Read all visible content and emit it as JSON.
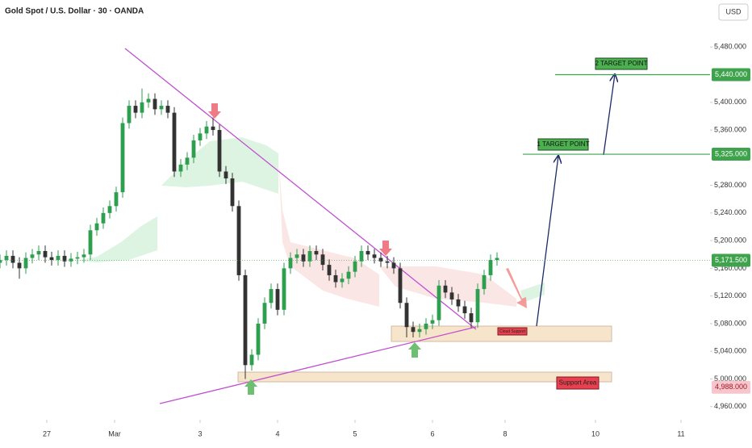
{
  "chart_data": {
    "type": "candlestick",
    "title": "Gold Spot / U.S. Dollar · 30 · OANDA",
    "currency": "USD",
    "x": [
      0,
      4,
      8,
      12,
      16,
      20,
      24,
      28,
      32,
      36,
      40,
      44,
      48,
      52,
      56,
      60,
      64,
      68,
      72,
      76,
      80,
      84,
      88,
      92,
      96,
      100,
      104,
      108,
      112,
      116,
      120,
      124,
      128,
      132,
      136,
      140,
      144,
      148,
      152,
      156,
      160,
      164,
      168,
      172,
      176,
      180,
      184,
      188,
      192,
      196,
      200,
      204,
      208,
      212,
      216,
      220,
      224,
      228,
      232,
      236,
      240,
      244,
      248,
      252,
      256,
      260,
      264,
      268,
      272,
      276,
      280,
      284,
      288,
      292,
      296,
      300,
      304,
      308
    ],
    "open": [
      5168,
      5172,
      5178,
      5168,
      5160,
      5175,
      5180,
      5185,
      5176,
      5172,
      5178,
      5170,
      5174,
      5176,
      5180,
      5215,
      5225,
      5240,
      5250,
      5270,
      5370,
      5395,
      5385,
      5400,
      5405,
      5390,
      5395,
      5385,
      5300,
      5310,
      5320,
      5345,
      5355,
      5365,
      5360,
      5300,
      5290,
      5250,
      5150,
      5020,
      5035,
      5080,
      5110,
      5130,
      5100,
      5160,
      5175,
      5180,
      5170,
      5185,
      5180,
      5165,
      5150,
      5140,
      5145,
      5155,
      5170,
      5185,
      5180,
      5175,
      5170,
      5168,
      5160,
      5110,
      5075,
      5068,
      5072,
      5080,
      5085,
      5135,
      5125,
      5115,
      5105,
      5095,
      5082,
      5130,
      5150,
      5172
    ],
    "high": [
      5180,
      5186,
      5186,
      5176,
      5183,
      5188,
      5193,
      5193,
      5184,
      5186,
      5186,
      5182,
      5184,
      5188,
      5223,
      5233,
      5248,
      5258,
      5278,
      5378,
      5403,
      5403,
      5420,
      5413,
      5413,
      5403,
      5403,
      5393,
      5318,
      5328,
      5353,
      5363,
      5373,
      5378,
      5368,
      5308,
      5298,
      5258,
      5158,
      5043,
      5088,
      5118,
      5138,
      5138,
      5168,
      5183,
      5188,
      5188,
      5193,
      5193,
      5188,
      5173,
      5158,
      5153,
      5163,
      5178,
      5193,
      5193,
      5188,
      5183,
      5178,
      5176,
      5168,
      5118,
      5083,
      5080,
      5088,
      5093,
      5143,
      5143,
      5133,
      5123,
      5113,
      5103,
      5138,
      5158,
      5180,
      5183
    ],
    "low": [
      5160,
      5164,
      5160,
      5145,
      5152,
      5167,
      5172,
      5168,
      5164,
      5164,
      5162,
      5162,
      5166,
      5168,
      5172,
      5207,
      5217,
      5232,
      5242,
      5262,
      5362,
      5377,
      5377,
      5392,
      5382,
      5382,
      5377,
      5292,
      5292,
      5302,
      5312,
      5337,
      5347,
      5352,
      5292,
      5282,
      5242,
      5142,
      5000,
      5012,
      5027,
      5072,
      5102,
      5092,
      5092,
      5152,
      5167,
      5162,
      5162,
      5172,
      5157,
      5142,
      5132,
      5132,
      5137,
      5147,
      5162,
      5172,
      5167,
      5162,
      5160,
      5152,
      5102,
      5060,
      5060,
      5060,
      5064,
      5072,
      5077,
      5117,
      5107,
      5097,
      5087,
      5074,
      5074,
      5122,
      5142,
      5164
    ],
    "close": [
      5172,
      5178,
      5168,
      5160,
      5175,
      5180,
      5185,
      5176,
      5172,
      5178,
      5170,
      5174,
      5176,
      5180,
      5215,
      5225,
      5240,
      5250,
      5270,
      5370,
      5395,
      5385,
      5400,
      5405,
      5390,
      5395,
      5385,
      5300,
      5310,
      5320,
      5345,
      5355,
      5365,
      5360,
      5300,
      5290,
      5250,
      5150,
      5020,
      5035,
      5080,
      5110,
      5130,
      5100,
      5160,
      5175,
      5180,
      5170,
      5185,
      5180,
      5165,
      5150,
      5140,
      5145,
      5155,
      5170,
      5185,
      5180,
      5175,
      5170,
      5168,
      5160,
      5110,
      5075,
      5068,
      5072,
      5080,
      5085,
      5135,
      5125,
      5115,
      5105,
      5095,
      5082,
      5130,
      5150,
      5172,
      5175
    ],
    "up_color": "#2e9e4f",
    "down_color": "#333333",
    "xlim": [
      0,
      440
    ],
    "xticks": [
      {
        "value": 29,
        "label": "27"
      },
      {
        "value": 71,
        "label": "Mar"
      },
      {
        "value": 124,
        "label": "3"
      },
      {
        "value": 172,
        "label": "4"
      },
      {
        "value": 220,
        "label": "5"
      },
      {
        "value": 268,
        "label": "6"
      },
      {
        "value": 313,
        "label": "8"
      },
      {
        "value": 369,
        "label": "10"
      },
      {
        "value": 422,
        "label": "11"
      }
    ],
    "ylim": [
      4941,
      5548
    ],
    "yticks": [
      {
        "value": 5480,
        "label": "5,480.000"
      },
      {
        "value": 5400,
        "label": "5,400.000"
      },
      {
        "value": 5360,
        "label": "5,360.000"
      },
      {
        "value": 5280,
        "label": "5,280.000"
      },
      {
        "value": 5240,
        "label": "5,240.000"
      },
      {
        "value": 5200,
        "label": "5,200.000"
      },
      {
        "value": 5160,
        "label": "5,160.000"
      },
      {
        "value": 5120,
        "label": "5,120.000"
      },
      {
        "value": 5080,
        "label": "5,080.000"
      },
      {
        "value": 5040,
        "label": "5,040.000"
      },
      {
        "value": 5000,
        "label": "5,000.000"
      },
      {
        "value": 4960,
        "label": "4,960.000"
      }
    ],
    "price_labels": [
      {
        "value": 5440,
        "label": "5,440.000",
        "color": "#3fa34d"
      },
      {
        "value": 5325,
        "label": "5,325.000",
        "color": "#3fa34d"
      },
      {
        "value": 5171.5,
        "label": "5,171.500",
        "color": "#3fa34d"
      },
      {
        "value": 4988,
        "label": "4,988.000",
        "color": "#f7c6cc"
      }
    ],
    "annotations": [
      "1 TARGET POINT",
      "2 TARGET POINT",
      "Cloud Support",
      "Support Area"
    ]
  }
}
